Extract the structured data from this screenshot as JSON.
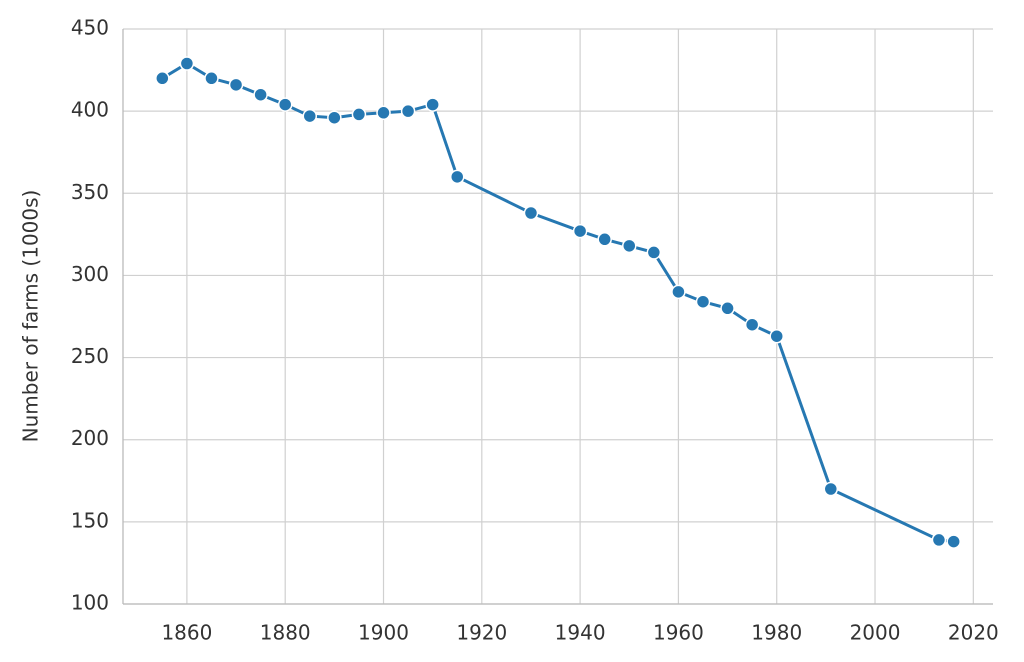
{
  "chart_data": {
    "type": "line",
    "y_label": "Number of farms (1000s)",
    "x": [
      1855,
      1860,
      1865,
      1870,
      1875,
      1880,
      1885,
      1890,
      1895,
      1900,
      1905,
      1910,
      1915,
      1930,
      1940,
      1945,
      1950,
      1955,
      1960,
      1965,
      1970,
      1975,
      1980,
      1991,
      2013,
      2016
    ],
    "series": [
      {
        "color": "#2678b2",
        "values": [
          420,
          429,
          420,
          416,
          410,
          404,
          397,
          396,
          398,
          399,
          400,
          404,
          360,
          338,
          327,
          322,
          318,
          314,
          290,
          284,
          280,
          270,
          263,
          170,
          139,
          138
        ]
      }
    ],
    "xlim": [
      1847,
      2024
    ],
    "xticks": [
      1860,
      1880,
      1900,
      1920,
      1940,
      1960,
      1980,
      2000,
      2020
    ],
    "ylim": [
      100,
      450
    ],
    "yticks": [
      100,
      150,
      200,
      250,
      300,
      350,
      400,
      450
    ],
    "grid": true
  }
}
